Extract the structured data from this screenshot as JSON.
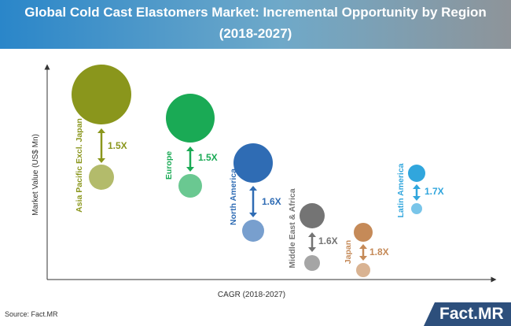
{
  "title": {
    "line1": "Global Cold Cast Elastomers Market: Incremental Opportunity by Region",
    "line2": "(2018-2027)"
  },
  "footer": {
    "source": "Source: Fact.MR",
    "logo_text": "Fact.MR"
  },
  "chart_data": {
    "type": "bubble",
    "title": "Global Cold Cast Elastomers Market: Incremental Opportunity by Region (2018-2027)",
    "xlabel": "CAGR (2018-2027)",
    "ylabel": "Market Value (US$ Mn)",
    "grid": false,
    "legend": "none",
    "series": [
      {
        "name": "Asia Pacific Excl. Japan",
        "color": "#8a961c",
        "ratio_label": "1.5X",
        "multiplier": 1.5
      },
      {
        "name": "Europe",
        "color": "#1aaa55",
        "ratio_label": "1.5X",
        "multiplier": 1.5
      },
      {
        "name": "North America",
        "color": "#2f6cb4",
        "ratio_label": "1.6X",
        "multiplier": 1.6
      },
      {
        "name": "Middle East & Africa",
        "color": "#747474",
        "ratio_label": "1.6X",
        "multiplier": 1.6
      },
      {
        "name": "Japan",
        "color": "#c58a58",
        "ratio_label": "1.8X",
        "multiplier": 1.8
      },
      {
        "name": "Latin America",
        "color": "#31a6dd",
        "ratio_label": "1.7X",
        "multiplier": 1.7
      }
    ]
  }
}
